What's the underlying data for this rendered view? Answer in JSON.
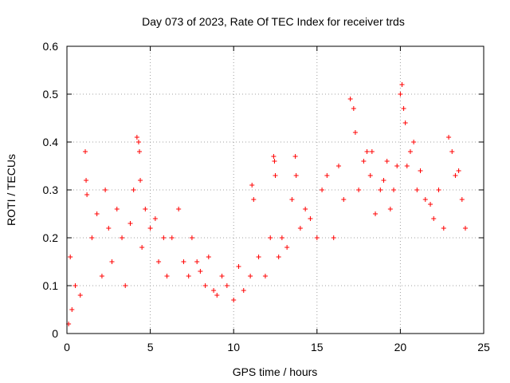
{
  "chart_data": {
    "type": "scatter",
    "title": "Day 073 of 2023, Rate Of TEC Index for receiver trds",
    "xlabel": "GPS time / hours",
    "ylabel": "ROTI / TECUs",
    "xlim": [
      0,
      25
    ],
    "ylim": [
      0,
      0.6
    ],
    "xticks": [
      "0",
      "5",
      "10",
      "15",
      "20",
      "25"
    ],
    "yticks": [
      "0",
      "0.1",
      "0.2",
      "0.3",
      "0.4",
      "0.5",
      "0.6"
    ],
    "grid": true,
    "legend": "none",
    "marker": "plus",
    "color": "#ff0000",
    "series": [
      {
        "x": [
          0.1,
          0.2,
          0.3,
          0.5,
          0.8,
          1.1,
          1.15,
          1.2,
          1.5,
          1.8,
          2.1,
          2.3,
          2.5,
          2.7,
          3.0,
          3.3,
          3.5,
          3.8,
          4.0,
          4.2,
          4.3,
          4.35,
          4.4,
          4.5,
          4.7,
          5.0,
          5.3,
          5.5,
          5.8,
          6.0,
          6.3,
          6.7,
          7.0,
          7.3,
          7.5,
          7.8,
          8.0,
          8.3,
          8.5,
          8.8,
          9.0,
          9.3,
          9.6,
          10.0,
          10.3,
          10.6,
          11.0,
          11.1,
          11.2,
          11.5,
          11.9,
          12.2,
          12.4,
          12.45,
          12.5,
          12.7,
          12.9,
          13.2,
          13.5,
          13.7,
          13.75,
          14.0,
          14.3,
          14.6,
          15.0,
          15.3,
          15.6,
          16.0,
          16.3,
          16.6,
          17.0,
          17.2,
          17.3,
          17.5,
          17.8,
          18.0,
          18.2,
          18.3,
          18.5,
          18.8,
          19.0,
          19.2,
          19.4,
          19.6,
          19.8,
          20.0,
          20.1,
          20.2,
          20.3,
          20.4,
          20.6,
          20.8,
          21.0,
          21.2,
          21.5,
          21.8,
          22.0,
          22.3,
          22.6,
          22.9,
          23.1,
          23.3,
          23.5,
          23.7,
          23.9
        ],
        "y": [
          0.02,
          0.16,
          0.05,
          0.1,
          0.08,
          0.38,
          0.32,
          0.29,
          0.2,
          0.25,
          0.12,
          0.3,
          0.22,
          0.15,
          0.26,
          0.2,
          0.1,
          0.23,
          0.3,
          0.41,
          0.4,
          0.38,
          0.32,
          0.18,
          0.26,
          0.22,
          0.24,
          0.15,
          0.2,
          0.12,
          0.2,
          0.26,
          0.15,
          0.12,
          0.2,
          0.15,
          0.13,
          0.1,
          0.16,
          0.09,
          0.08,
          0.12,
          0.1,
          0.07,
          0.14,
          0.09,
          0.12,
          0.31,
          0.28,
          0.16,
          0.12,
          0.2,
          0.37,
          0.36,
          0.33,
          0.16,
          0.2,
          0.18,
          0.28,
          0.37,
          0.33,
          0.22,
          0.26,
          0.24,
          0.2,
          0.3,
          0.33,
          0.2,
          0.35,
          0.28,
          0.49,
          0.47,
          0.42,
          0.3,
          0.36,
          0.38,
          0.33,
          0.38,
          0.25,
          0.3,
          0.32,
          0.36,
          0.26,
          0.3,
          0.35,
          0.5,
          0.52,
          0.47,
          0.44,
          0.35,
          0.38,
          0.4,
          0.3,
          0.34,
          0.28,
          0.27,
          0.24,
          0.3,
          0.22,
          0.41,
          0.38,
          0.33,
          0.34,
          0.28,
          0.22
        ]
      }
    ]
  }
}
